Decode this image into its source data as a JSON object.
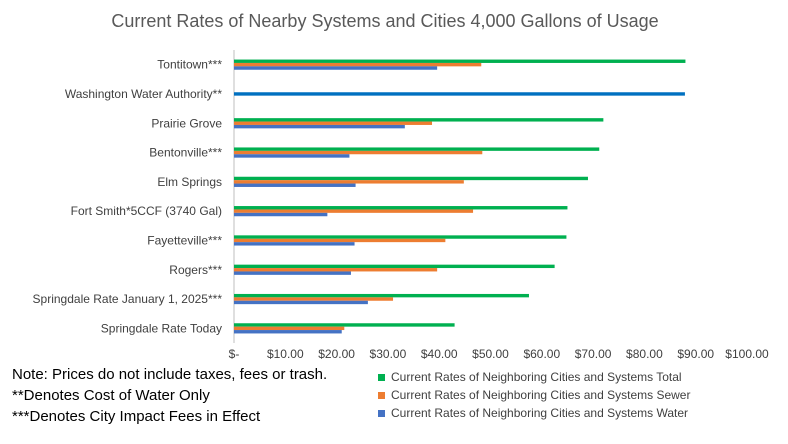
{
  "chart_data": {
    "type": "bar",
    "orientation": "horizontal",
    "title": "Current Rates of Nearby Systems and Cities 4,000  Gallons of Usage",
    "categories": [
      "Tontitown***",
      "Washington Water Authority**",
      "Prairie Grove",
      "Bentonville***",
      "Elm Springs",
      "Fort Smith*5CCF (3740 Gal)",
      "Fayetteville***",
      "Rogers***",
      "Springdale Rate January 1, 2025***",
      "Springdale Rate Today"
    ],
    "series": [
      {
        "name": "Current Rates of Neighboring Cities and Systems  Total",
        "color": "#00B050",
        "values": [
          88.0,
          null,
          72.0,
          71.2,
          69.0,
          65.0,
          64.8,
          62.5,
          57.5,
          43.0
        ]
      },
      {
        "name": "Current Rates of Neighboring Cities and Systems  Sewer",
        "color": "#ED7D31",
        "values": [
          48.2,
          null,
          38.6,
          48.4,
          44.8,
          46.6,
          41.2,
          39.6,
          31.0,
          21.5
        ]
      },
      {
        "name": "Current Rates of Neighboring Cities and Systems  Water",
        "color": "#4472C4",
        "values": [
          39.6,
          87.9,
          33.3,
          22.5,
          23.7,
          18.2,
          23.5,
          22.8,
          26.1,
          21.0
        ]
      }
    ],
    "special_bars": [
      {
        "category": "Washington Water Authority**",
        "series": "Current Rates of Neighboring Cities and Systems  Water",
        "color": "#0070C0"
      }
    ],
    "xlim": [
      0,
      100
    ],
    "xticks": [
      "$-",
      "$10.00",
      "$20.00",
      "$30.00",
      "$40.00",
      "$50.00",
      "$60.00",
      "$70.00",
      "$80.00",
      "$90.00",
      "$100.00"
    ],
    "xlabel": "",
    "ylabel": "",
    "grid": false,
    "legend_position": "bottom-right"
  },
  "notes": {
    "line1": "Note:   Prices do not include taxes, fees or trash.",
    "line2": "**Denotes Cost of Water Only",
    "line3": "***Denotes City Impact Fees in Effect"
  }
}
